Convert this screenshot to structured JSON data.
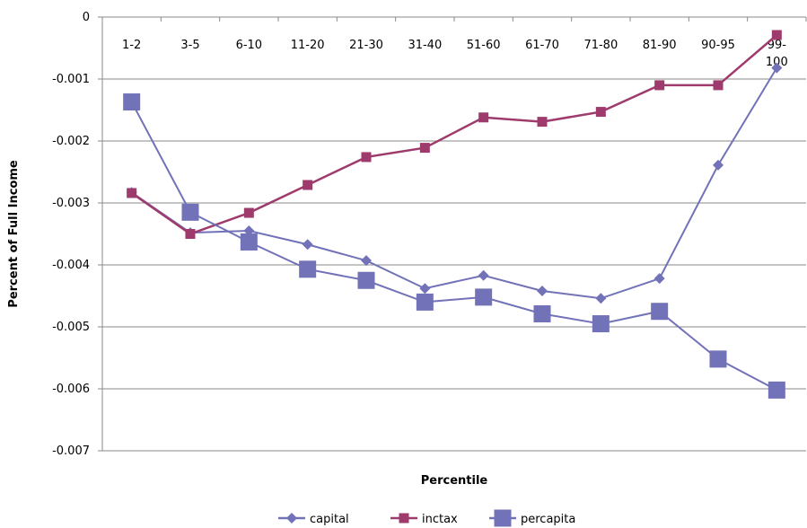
{
  "chart_data": {
    "type": "line",
    "title": "",
    "xlabel": "Percentile",
    "ylabel": "Percent of Full Income",
    "categories": [
      "1-2",
      "3-5",
      "6-10",
      "11-20",
      "21-30",
      "31-40",
      "51-60",
      "61-70",
      "71-80",
      "81-90",
      "90-95",
      "99-100"
    ],
    "ylim": [
      -0.007,
      0
    ],
    "yticks": [
      0,
      -0.001,
      -0.002,
      -0.003,
      -0.004,
      -0.005,
      -0.006,
      -0.007
    ],
    "ytick_labels": [
      "0",
      "-0.001",
      "-0.002",
      "-0.003",
      "-0.004",
      "-0.005",
      "-0.006",
      "-0.007"
    ],
    "grid": "horizontal",
    "legend_position": "bottom",
    "series": [
      {
        "name": "capital",
        "color": "#7272b8",
        "marker": "diamond",
        "values": [
          -0.00283,
          -0.00348,
          -0.00345,
          -0.00367,
          -0.00393,
          -0.00438,
          -0.00417,
          -0.00442,
          -0.00454,
          -0.00422,
          -0.00239,
          -0.00082
        ]
      },
      {
        "name": "inctax",
        "color": "#9e3b6c",
        "marker": "square",
        "values": [
          -0.00284,
          -0.0035,
          -0.00316,
          -0.00271,
          -0.00226,
          -0.00211,
          -0.00162,
          -0.00169,
          -0.00153,
          -0.0011,
          -0.0011,
          -0.00029
        ]
      },
      {
        "name": "percapita",
        "color": "#7272b8",
        "marker": "big-square",
        "values": [
          -0.00137,
          -0.00315,
          -0.00363,
          -0.00407,
          -0.00425,
          -0.0046,
          -0.00452,
          -0.00479,
          -0.00495,
          -0.00475,
          -0.00552,
          -0.00602
        ]
      }
    ]
  }
}
